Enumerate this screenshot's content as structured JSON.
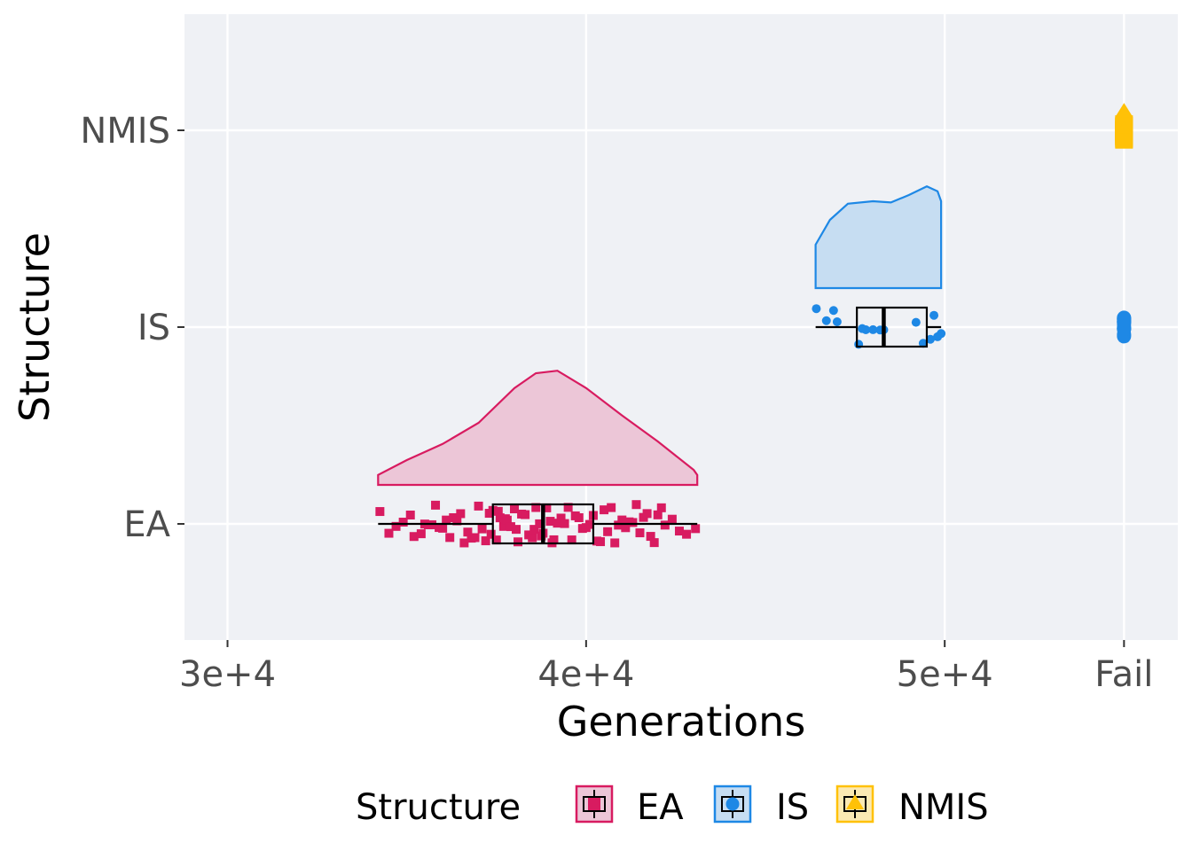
{
  "chart_data": {
    "type": "raincloud",
    "title": "",
    "xlabel": "Generations",
    "ylabel": "Structure",
    "xlim": [
      28800,
      56500
    ],
    "x_ticks": [
      {
        "value": 30000,
        "label": "3e+4"
      },
      {
        "value": 40000,
        "label": "4e+4"
      },
      {
        "value": 50000,
        "label": "5e+4"
      },
      {
        "value": 55000,
        "label": "Fail"
      }
    ],
    "categories": [
      "EA",
      "IS",
      "NMIS"
    ],
    "fail_value": 55000,
    "series": [
      {
        "name": "EA",
        "color": "#d81b60",
        "fill": "#ecc6d7",
        "marker": "square",
        "box": {
          "whisker_low": 34200,
          "q1": 37400,
          "median": 38800,
          "q3": 40200,
          "whisker_high": 43100
        },
        "density": [
          [
            34200,
            0.08
          ],
          [
            35000,
            0.2
          ],
          [
            36000,
            0.33
          ],
          [
            37000,
            0.5
          ],
          [
            38000,
            0.78
          ],
          [
            38600,
            0.9
          ],
          [
            39200,
            0.92
          ],
          [
            40000,
            0.78
          ],
          [
            41000,
            0.56
          ],
          [
            42000,
            0.35
          ],
          [
            43000,
            0.12
          ],
          [
            43100,
            0.08
          ]
        ],
        "points": [
          34250,
          34500,
          34700,
          34900,
          35100,
          35200,
          35400,
          35500,
          35600,
          35700,
          35800,
          35900,
          36000,
          36100,
          36200,
          36300,
          36400,
          36500,
          36600,
          36700,
          36800,
          36900,
          37000,
          37100,
          37200,
          37300,
          37350,
          37400,
          37500,
          37550,
          37600,
          37700,
          37750,
          37800,
          37900,
          38000,
          38050,
          38100,
          38200,
          38300,
          38400,
          38500,
          38550,
          38600,
          38700,
          38750,
          38800,
          38900,
          39000,
          39050,
          39100,
          39200,
          39300,
          39400,
          39500,
          39600,
          39700,
          39800,
          39900,
          40000,
          40100,
          40200,
          40300,
          40400,
          40500,
          40600,
          40700,
          40800,
          40900,
          41000,
          41100,
          41200,
          41300,
          41400,
          41500,
          41600,
          41700,
          41800,
          41900,
          42000,
          42100,
          42200,
          42400,
          42600,
          42800,
          43050
        ],
        "fail_count": 0
      },
      {
        "name": "IS",
        "color": "#1e88e5",
        "fill": "#c6ddf2",
        "marker": "circle",
        "box": {
          "whisker_low": 46400,
          "q1": 47550,
          "median": 48300,
          "q3": 49500,
          "whisker_high": 49900
        },
        "density": [
          [
            46400,
            0.35
          ],
          [
            46800,
            0.55
          ],
          [
            47300,
            0.68
          ],
          [
            48000,
            0.7
          ],
          [
            48500,
            0.69
          ],
          [
            49000,
            0.75
          ],
          [
            49500,
            0.82
          ],
          [
            49800,
            0.78
          ],
          [
            49900,
            0.7
          ]
        ],
        "points": [
          46420,
          46900,
          47000,
          46700,
          47600,
          47700,
          47800,
          48000,
          48200,
          48300,
          49200,
          49400,
          49600,
          49700,
          49800,
          49900
        ],
        "fail_count": 14
      },
      {
        "name": "NMIS",
        "color": "#ffc107",
        "fill": "#fbe9b3",
        "marker": "triangle",
        "box": null,
        "density": [],
        "points": [],
        "fail_count": 30
      }
    ],
    "legend": {
      "title": "Structure",
      "position": "bottom",
      "entries": [
        "EA",
        "IS",
        "NMIS"
      ]
    }
  }
}
